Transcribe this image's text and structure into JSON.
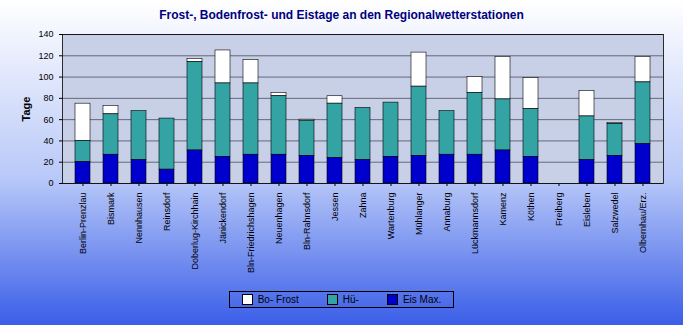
{
  "chart_data": {
    "type": "bar",
    "title": "Frost-, Bodenfrost- und Eistage an den Regionalwetterstationen",
    "y_label": "Tage",
    "categories": [
      "Berlin-Prenzlau",
      "Bismark",
      "Nennhausen",
      "Reinsdorf",
      "Doberlug-Kirchhain",
      "Jänickendorf",
      "Bln-Friedrichshagen",
      "Neuenhagen",
      "Bln-Rahnsdorf",
      "Jessen",
      "Zahna",
      "Wartenburg",
      "Mühlanger",
      "Annaburg",
      "Lückmannsdorf",
      "Kamenz",
      "Köthen",
      "Freiberg",
      "Eisleben",
      "Salzwedel",
      "Olbernhau/Erz."
    ],
    "series": [
      {
        "name": "Bo- Frost",
        "color": "#ffffff",
        "values": [
          35,
          8,
          0,
          0,
          3,
          31,
          22,
          3,
          1,
          7,
          0,
          0,
          32,
          0,
          15,
          40,
          29,
          null,
          24,
          1,
          24
        ]
      },
      {
        "name": "Hü-",
        "color": "#33a3a3",
        "values": [
          20,
          38,
          46,
          48,
          83,
          69,
          67,
          55,
          33,
          51,
          49,
          51,
          65,
          41,
          58,
          48,
          45,
          null,
          41,
          30,
          58
        ]
      },
      {
        "name": "Eis Max.",
        "color": "#0000cc",
        "values": [
          20,
          27,
          22,
          13,
          31,
          25,
          27,
          27,
          26,
          24,
          22,
          25,
          26,
          27,
          27,
          31,
          25,
          null,
          22,
          26,
          37
        ]
      }
    ],
    "ylim": [
      0,
      140
    ],
    "yticks": [
      0,
      20,
      40,
      60,
      80,
      100,
      120,
      140
    ],
    "grid": true,
    "stacked": true,
    "legend": "bottom"
  }
}
